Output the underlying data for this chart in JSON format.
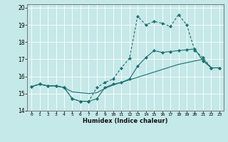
{
  "xlabel": "Humidex (Indice chaleur)",
  "xlim": [
    -0.5,
    23.5
  ],
  "ylim": [
    14,
    20.2
  ],
  "yticks": [
    14,
    15,
    16,
    17,
    18,
    19,
    20
  ],
  "xticks": [
    0,
    1,
    2,
    3,
    4,
    5,
    6,
    7,
    8,
    9,
    10,
    11,
    12,
    13,
    14,
    15,
    16,
    17,
    18,
    19,
    20,
    21,
    22,
    23
  ],
  "bg_color": "#c5e8e8",
  "line_color": "#1a7070",
  "grid_color": "#ffffff",
  "line1_x": [
    0,
    1,
    2,
    3,
    4,
    5,
    6,
    7,
    8,
    9,
    10,
    11,
    12,
    13,
    14,
    15,
    16,
    17,
    18,
    19,
    20,
    21,
    22,
    23
  ],
  "line1_y": [
    15.4,
    15.55,
    15.45,
    15.45,
    15.35,
    15.1,
    15.05,
    15.0,
    15.05,
    15.3,
    15.5,
    15.65,
    15.8,
    15.95,
    16.1,
    16.25,
    16.4,
    16.55,
    16.7,
    16.8,
    16.9,
    17.0,
    16.5,
    16.5
  ],
  "line2_x": [
    0,
    1,
    2,
    3,
    4,
    5,
    6,
    7,
    8,
    9,
    10,
    11,
    12,
    13,
    14,
    15,
    16,
    17,
    18,
    19,
    20,
    21,
    22,
    23
  ],
  "line2_y": [
    15.4,
    15.55,
    15.45,
    15.45,
    15.35,
    14.7,
    14.55,
    14.55,
    14.7,
    15.35,
    15.55,
    15.65,
    15.85,
    16.6,
    17.1,
    17.5,
    17.4,
    17.45,
    17.5,
    17.55,
    17.6,
    16.9,
    16.5,
    16.5
  ],
  "line3_x": [
    0,
    1,
    2,
    3,
    4,
    5,
    6,
    7,
    8,
    9,
    10,
    11,
    12,
    13,
    14,
    15,
    16,
    17,
    18,
    19,
    20,
    21,
    22,
    23
  ],
  "line3_y": [
    15.4,
    15.55,
    15.45,
    15.45,
    15.35,
    14.7,
    14.55,
    14.55,
    15.35,
    15.65,
    15.85,
    16.5,
    17.05,
    19.5,
    19.0,
    19.2,
    19.1,
    18.9,
    19.6,
    19.0,
    17.5,
    17.1,
    16.5,
    16.5
  ]
}
